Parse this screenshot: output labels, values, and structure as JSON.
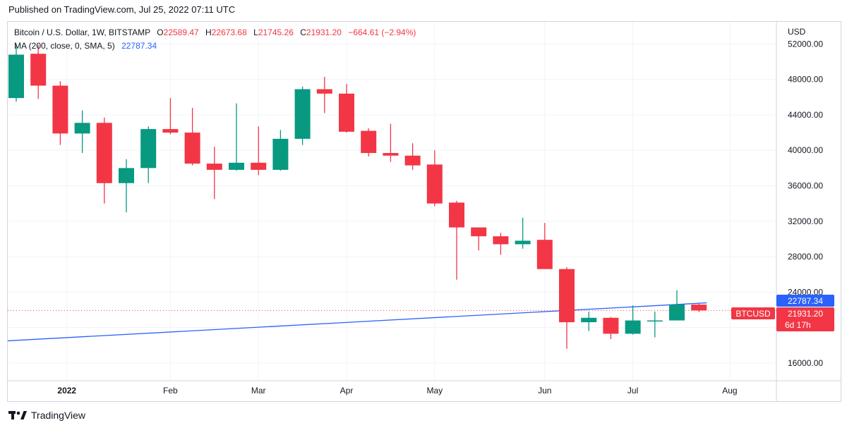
{
  "header": {
    "published": "Published on TradingView.com, Jul 25, 2022 07:11 UTC"
  },
  "legend": {
    "symbol": "Bitcoin / U.S. Dollar, 1W, BITSTAMP",
    "o_label": "O",
    "o_value": "22589.47",
    "h_label": "H",
    "h_value": "22673.68",
    "l_label": "L",
    "l_value": "21745.26",
    "c_label": "C",
    "c_value": "21931.20",
    "change": "−664.61 (−2.94%)",
    "ma_label": "MA (200, close, 0, SMA, 5)",
    "ma_value": "22787.34"
  },
  "price_axis": {
    "currency": "USD",
    "ticks": [
      "52000.00",
      "48000.00",
      "44000.00",
      "40000.00",
      "36000.00",
      "32000.00",
      "28000.00",
      "24000.00",
      "20000.00",
      "16000.00"
    ],
    "ma_tag": "22787.34",
    "price_tag": "21931.20",
    "countdown": "6d 17h",
    "symbol_tag": "BTCUSD"
  },
  "colors": {
    "up": "#089981",
    "down": "#f23645",
    "ma": "#2962ff",
    "grid": "#f0f3fa"
  },
  "footer": {
    "brand": "TradingView",
    "logo_icon": "tradingview-logo-icon"
  },
  "chart_data": {
    "type": "candlestick",
    "title": "Bitcoin / U.S. Dollar, 1W, BITSTAMP",
    "ylabel": "USD",
    "ylim": [
      14000,
      54500
    ],
    "x_ticks": [
      {
        "label": "2022",
        "index": 2.3
      },
      {
        "label": "Feb",
        "index": 7
      },
      {
        "label": "Mar",
        "index": 11
      },
      {
        "label": "Apr",
        "index": 15
      },
      {
        "label": "May",
        "index": 19
      },
      {
        "label": "Jun",
        "index": 24
      },
      {
        "label": "Jul",
        "index": 28
      },
      {
        "label": "Aug",
        "index": 32.4
      }
    ],
    "candles": [
      {
        "o": 45900,
        "h": 52000,
        "l": 45500,
        "c": 50800
      },
      {
        "o": 50900,
        "h": 51900,
        "l": 45800,
        "c": 47300
      },
      {
        "o": 47300,
        "h": 47800,
        "l": 40600,
        "c": 41900
      },
      {
        "o": 41900,
        "h": 44500,
        "l": 39700,
        "c": 43100
      },
      {
        "o": 43100,
        "h": 43700,
        "l": 34000,
        "c": 36300
      },
      {
        "o": 36300,
        "h": 39000,
        "l": 33000,
        "c": 38000
      },
      {
        "o": 38000,
        "h": 42700,
        "l": 36300,
        "c": 42400
      },
      {
        "o": 42400,
        "h": 45900,
        "l": 41800,
        "c": 42000
      },
      {
        "o": 42000,
        "h": 44800,
        "l": 38300,
        "c": 38500
      },
      {
        "o": 38500,
        "h": 40400,
        "l": 34500,
        "c": 37800
      },
      {
        "o": 37800,
        "h": 45300,
        "l": 37700,
        "c": 38600
      },
      {
        "o": 38600,
        "h": 42700,
        "l": 37200,
        "c": 37800
      },
      {
        "o": 37800,
        "h": 42300,
        "l": 37700,
        "c": 41300
      },
      {
        "o": 41300,
        "h": 47200,
        "l": 40600,
        "c": 46900
      },
      {
        "o": 46900,
        "h": 48300,
        "l": 44200,
        "c": 46400
      },
      {
        "o": 46400,
        "h": 47500,
        "l": 42000,
        "c": 42100
      },
      {
        "o": 42200,
        "h": 42500,
        "l": 39300,
        "c": 39700
      },
      {
        "o": 39700,
        "h": 43000,
        "l": 38700,
        "c": 39400
      },
      {
        "o": 39400,
        "h": 40800,
        "l": 37800,
        "c": 38300
      },
      {
        "o": 38400,
        "h": 40000,
        "l": 33700,
        "c": 34000
      },
      {
        "o": 34100,
        "h": 34300,
        "l": 25400,
        "c": 31300
      },
      {
        "o": 31300,
        "h": 31300,
        "l": 28700,
        "c": 30300
      },
      {
        "o": 30300,
        "h": 30700,
        "l": 28200,
        "c": 29400
      },
      {
        "o": 29400,
        "h": 32400,
        "l": 28900,
        "c": 29800
      },
      {
        "o": 29900,
        "h": 31800,
        "l": 26600,
        "c": 26600
      },
      {
        "o": 26600,
        "h": 26800,
        "l": 17600,
        "c": 20600
      },
      {
        "o": 20600,
        "h": 21800,
        "l": 19600,
        "c": 21100
      },
      {
        "o": 21100,
        "h": 21200,
        "l": 18700,
        "c": 19300
      },
      {
        "o": 19300,
        "h": 22500,
        "l": 19200,
        "c": 20800
      },
      {
        "o": 20800,
        "h": 21800,
        "l": 18900,
        "c": 20800
      },
      {
        "o": 20800,
        "h": 24200,
        "l": 20800,
        "c": 22600
      },
      {
        "o": 22589.47,
        "h": 22673.68,
        "l": 21745.26,
        "c": 21931.2
      }
    ],
    "ma_line": {
      "name": "MA (200, close, 0, SMA, 5)",
      "start": 18500,
      "end": 22787.34
    },
    "last_price": 21931.2
  }
}
